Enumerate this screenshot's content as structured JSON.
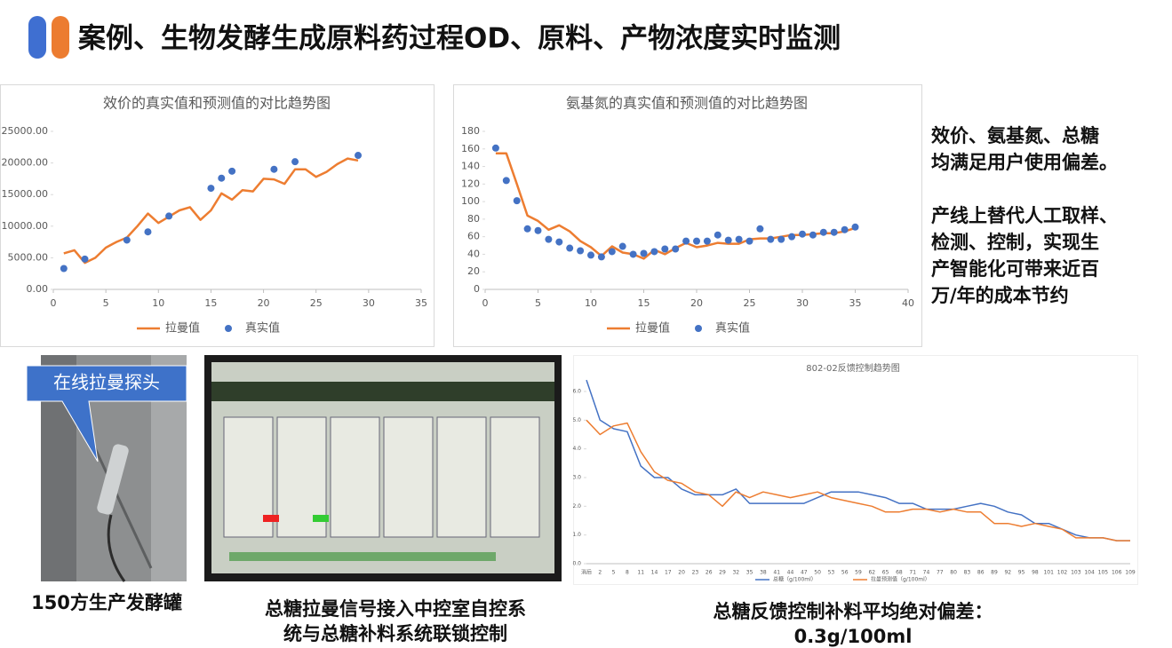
{
  "title": "案例、生物发酵生成原料药过程OD、原料、产物浓度实时监测",
  "side_text": [
    [
      "效价、氨基氮、总糖",
      "均满足用户使用偏差。"
    ],
    [
      "产线上替代人工取样、",
      "检测、控制，实现生",
      "产智能化可带来近百",
      "万/年的成本节约"
    ]
  ],
  "photo_callout": "在线拉曼探头",
  "captions": [
    [
      "150方生产发酵罐"
    ],
    [
      "总糖拉曼信号接入中控室自控系",
      "统与总糖补料系统联锁控制"
    ],
    [
      "总糖反馈控制补料平均绝对偏差：",
      "0.3g/100ml"
    ]
  ],
  "chart_data": [
    {
      "type": "line",
      "title": "效价的真实值和预测值的对比趋势图",
      "grid": false,
      "xlim": [
        0,
        35
      ],
      "xticks": [
        0,
        5,
        10,
        15,
        20,
        25,
        30,
        35
      ],
      "ylim": [
        0,
        25000
      ],
      "yticks": [
        {
          "value": 0,
          "label": "0.00"
        },
        {
          "value": 5000,
          "label": "5000.00"
        },
        {
          "value": 10000,
          "label": "10000.00"
        },
        {
          "value": 15000,
          "label": "15000.00"
        },
        {
          "value": 20000,
          "label": "20000.00"
        },
        {
          "value": 25000,
          "label": "25000.00"
        }
      ],
      "legend": "bottom",
      "series": [
        {
          "name": "拉曼值",
          "color": "#ED7D31",
          "mark": "line",
          "x": [
            1,
            2,
            3,
            4,
            5,
            6,
            7,
            8,
            9,
            10,
            11,
            12,
            13,
            14,
            15,
            16,
            17,
            18,
            19,
            20,
            21,
            22,
            23,
            24,
            25,
            26,
            27,
            28,
            29
          ],
          "values": [
            5700,
            6200,
            4200,
            5000,
            6600,
            7500,
            8200,
            10000,
            12000,
            10500,
            11500,
            12500,
            13000,
            11000,
            12500,
            15200,
            14200,
            15700,
            15500,
            17500,
            17400,
            16700,
            19000,
            19000,
            17800,
            18600,
            19800,
            20700,
            20400
          ]
        },
        {
          "name": "真实值",
          "color": "#4472C4",
          "mark": "scatter",
          "x": [
            1,
            3,
            7,
            9,
            11,
            15,
            16,
            17,
            21,
            23,
            29
          ],
          "values": [
            3300,
            4800,
            7800,
            9100,
            11600,
            16000,
            17600,
            18700,
            19000,
            20200,
            21200
          ]
        }
      ]
    },
    {
      "type": "line",
      "title": "氨基氮的真实值和预测值的对比趋势图",
      "grid": false,
      "xlim": [
        0,
        40
      ],
      "xticks": [
        0,
        5,
        10,
        15,
        20,
        25,
        30,
        35,
        40
      ],
      "ylim": [
        0,
        180
      ],
      "yticks": [
        0,
        20,
        40,
        60,
        80,
        100,
        120,
        140,
        160,
        180
      ],
      "legend": "bottom",
      "series": [
        {
          "name": "拉曼值",
          "color": "#ED7D31",
          "mark": "line",
          "x": [
            1,
            2,
            3,
            4,
            5,
            6,
            7,
            8,
            9,
            10,
            11,
            12,
            13,
            14,
            15,
            16,
            17,
            18,
            19,
            20,
            21,
            22,
            23,
            24,
            25,
            26,
            27,
            28,
            29,
            30,
            31,
            32,
            33,
            34,
            35
          ],
          "values": [
            155,
            155,
            120,
            84,
            78,
            68,
            73,
            66,
            55,
            48,
            38,
            49,
            42,
            40,
            35,
            45,
            40,
            47,
            53,
            48,
            50,
            53,
            52,
            52,
            57,
            58,
            58,
            60,
            62,
            62,
            63,
            64,
            64,
            66,
            70
          ]
        },
        {
          "name": "真实值",
          "color": "#4472C4",
          "mark": "scatter",
          "x": [
            1,
            2,
            3,
            4,
            5,
            6,
            7,
            8,
            9,
            10,
            11,
            12,
            13,
            14,
            15,
            16,
            17,
            18,
            19,
            20,
            21,
            22,
            23,
            24,
            25,
            26,
            27,
            28,
            29,
            30,
            31,
            32,
            33,
            34,
            35
          ],
          "values": [
            161,
            124,
            101,
            69,
            67,
            57,
            54,
            47,
            44,
            39,
            37,
            43,
            49,
            40,
            41,
            43,
            46,
            46,
            55,
            55,
            55,
            62,
            56,
            57,
            55,
            69,
            57,
            57,
            60,
            63,
            62,
            65,
            65,
            68,
            71
          ]
        }
      ]
    },
    {
      "type": "line",
      "title": "802-02反馈控制趋势图",
      "grid": false,
      "categories": [
        "消后",
        "2",
        "5",
        "8",
        "11",
        "14",
        "17",
        "20",
        "23",
        "26",
        "29",
        "32",
        "35",
        "38",
        "41",
        "44",
        "47",
        "50",
        "53",
        "56",
        "59",
        "62",
        "65",
        "68",
        "71",
        "74",
        "77",
        "80",
        "83",
        "86",
        "89",
        "92",
        "95",
        "98",
        "101",
        "102",
        "103",
        "104",
        "105",
        "106",
        "109"
      ],
      "ylim": [
        0,
        6.0
      ],
      "yticks": [
        {
          "value": 0,
          "label": "0.0"
        },
        {
          "value": 1,
          "label": "1.0"
        },
        {
          "value": 2,
          "label": "2.0"
        },
        {
          "value": 3,
          "label": "3.0"
        },
        {
          "value": 4,
          "label": "4.0"
        },
        {
          "value": 5,
          "label": "5.0"
        },
        {
          "value": 6,
          "label": "6.0"
        }
      ],
      "legend": "bottom",
      "series": [
        {
          "name": "总糖（g/100ml）",
          "color": "#4472C4",
          "mark": "line",
          "values": [
            6.4,
            5.0,
            4.7,
            4.6,
            3.4,
            3.0,
            3.0,
            2.6,
            2.4,
            2.4,
            2.4,
            2.6,
            2.1,
            2.1,
            2.1,
            2.1,
            2.1,
            2.3,
            2.5,
            2.5,
            2.5,
            2.4,
            2.3,
            2.1,
            2.1,
            1.9,
            1.9,
            1.9,
            2.0,
            2.1,
            2.0,
            1.8,
            1.7,
            1.4,
            1.4,
            1.2,
            1.0,
            0.9,
            0.9,
            0.8,
            0.8
          ]
        },
        {
          "name": "拉曼预测值（g/100ml）",
          "color": "#ED7D31",
          "mark": "line",
          "values": [
            5.0,
            4.5,
            4.8,
            4.9,
            3.9,
            3.2,
            2.9,
            2.8,
            2.5,
            2.4,
            2.0,
            2.5,
            2.3,
            2.5,
            2.4,
            2.3,
            2.4,
            2.5,
            2.3,
            2.2,
            2.1,
            2.0,
            1.8,
            1.8,
            1.9,
            1.9,
            1.8,
            1.9,
            1.8,
            1.8,
            1.4,
            1.4,
            1.3,
            1.4,
            1.3,
            1.2,
            0.9,
            0.9,
            0.9,
            0.8,
            0.8
          ]
        }
      ]
    }
  ]
}
